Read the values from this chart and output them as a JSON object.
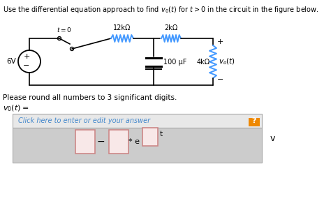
{
  "title": "Use the differential equation approach to find $v_0(t)$ for $t > 0$ in the circuit in the figure below.",
  "round_note": "Please round all numbers to 3 significant digits.",
  "vo_label": "$v_0(t) =$",
  "answer_link_text": "Click here to enter or edit your answer",
  "unit": "v",
  "bg_color": "#ffffff",
  "box_bg": "#cccccc",
  "box_top_bg": "#e8e8e8",
  "link_color": "#4488cc",
  "orange_color": "#ee8800",
  "wire_color": "#000000",
  "res_color": "#4499ff",
  "input_box_border": "#cc8888",
  "input_box_bg": "#f8e8e8",
  "circuit": {
    "vs_label": "6V",
    "r1_label": "12kΩ",
    "r2_label": "2kΩ",
    "cap_label": "100 μF",
    "r3_label": "4kΩ",
    "vo_label": "$v_o(t)$",
    "switch_label": "$t = 0$"
  }
}
